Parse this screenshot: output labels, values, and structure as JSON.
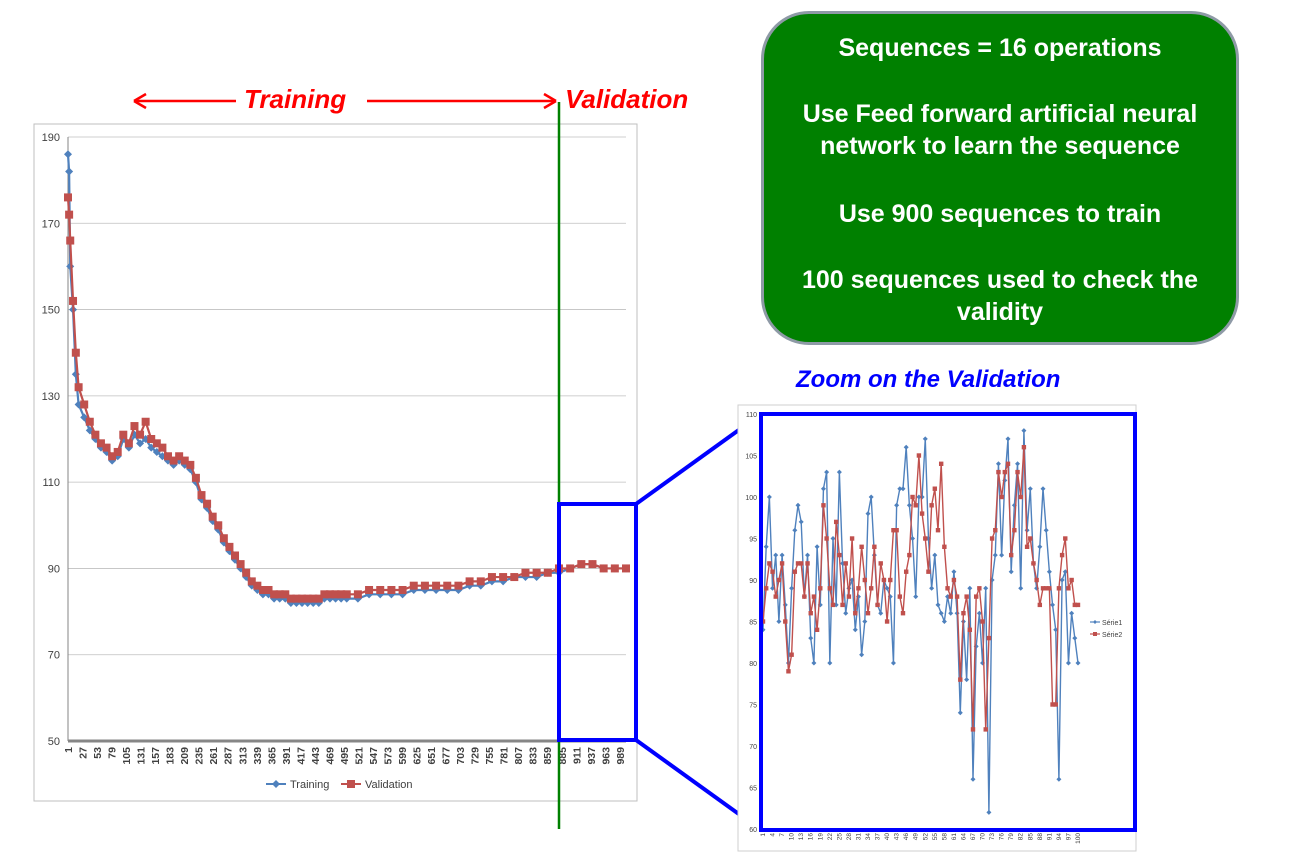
{
  "annotations": {
    "training_label": "Training",
    "validation_label": "Validation",
    "zoom_label": "Zoom on the Validation"
  },
  "info_box": {
    "line1": "Sequences = 16 operations",
    "line2": "Use Feed forward artificial neural network to learn the sequence",
    "line3": "Use 900 sequences to train",
    "line4": "100 sequences used to check the validity"
  },
  "colors": {
    "training": "#4f81bd",
    "validation": "#c0504d",
    "arrow": "#ff0000",
    "split_line": "#008000",
    "zoom_frame": "#0000ff",
    "box_fill": "#008000"
  },
  "chart_data": [
    {
      "type": "line",
      "title": "",
      "xlabel": "",
      "ylabel": "",
      "ylim": [
        50,
        190
      ],
      "yticks": [
        50,
        70,
        90,
        110,
        130,
        150,
        170,
        190
      ],
      "grid": true,
      "legend_position": "bottom",
      "x_tick_labels": [
        "1",
        "27",
        "53",
        "79",
        "105",
        "131",
        "157",
        "183",
        "209",
        "235",
        "261",
        "287",
        "313",
        "339",
        "365",
        "391",
        "417",
        "443",
        "469",
        "495",
        "521",
        "547",
        "573",
        "599",
        "625",
        "651",
        "677",
        "703",
        "729",
        "755",
        "781",
        "807",
        "833",
        "859",
        "885",
        "911",
        "937",
        "963",
        "989"
      ],
      "x_count": 1000,
      "train_validation_split": 900,
      "series": [
        {
          "name": "Training",
          "x": [
            1,
            3,
            5,
            10,
            15,
            20,
            30,
            40,
            50,
            60,
            70,
            80,
            90,
            100,
            110,
            120,
            130,
            140,
            150,
            160,
            170,
            180,
            190,
            200,
            210,
            220,
            230,
            240,
            250,
            260,
            270,
            280,
            290,
            300,
            310,
            320,
            330,
            340,
            350,
            360,
            370,
            380,
            390,
            400,
            410,
            420,
            430,
            440,
            450,
            460,
            470,
            480,
            490,
            500,
            520,
            540,
            560,
            580,
            600,
            620,
            640,
            660,
            680,
            700,
            720,
            740,
            760,
            780,
            800,
            820,
            840,
            860,
            880,
            900,
            920,
            940,
            960,
            980,
            1000
          ],
          "values": [
            186,
            182,
            160,
            150,
            135,
            128,
            125,
            122,
            120,
            118,
            117,
            115,
            116,
            120,
            118,
            121,
            119,
            120,
            118,
            117,
            116,
            115,
            114,
            115,
            114,
            113,
            110,
            106,
            104,
            101,
            99,
            96,
            94,
            92,
            90,
            88,
            86,
            85,
            84,
            84,
            83,
            83,
            83,
            82,
            82,
            82,
            82,
            82,
            82,
            83,
            83,
            83,
            83,
            83,
            83,
            84,
            84,
            84,
            84,
            85,
            85,
            85,
            85,
            85,
            86,
            86,
            87,
            87,
            88,
            88,
            88,
            89,
            89,
            90,
            91,
            91,
            90,
            90,
            90
          ]
        },
        {
          "name": "Validation",
          "x": [
            1,
            3,
            5,
            10,
            15,
            20,
            30,
            40,
            50,
            60,
            70,
            80,
            90,
            100,
            110,
            120,
            130,
            140,
            150,
            160,
            170,
            180,
            190,
            200,
            210,
            220,
            230,
            240,
            250,
            260,
            270,
            280,
            290,
            300,
            310,
            320,
            330,
            340,
            350,
            360,
            370,
            380,
            390,
            400,
            410,
            420,
            430,
            440,
            450,
            460,
            470,
            480,
            490,
            500,
            520,
            540,
            560,
            580,
            600,
            620,
            640,
            660,
            680,
            700,
            720,
            740,
            760,
            780,
            800,
            820,
            840,
            860,
            880,
            900,
            920,
            940,
            960,
            980,
            1000
          ],
          "values": [
            176,
            172,
            166,
            152,
            140,
            132,
            128,
            124,
            121,
            119,
            118,
            116,
            117,
            121,
            119,
            123,
            121,
            124,
            120,
            119,
            118,
            116,
            115,
            116,
            115,
            114,
            111,
            107,
            105,
            102,
            100,
            97,
            95,
            93,
            91,
            89,
            87,
            86,
            85,
            85,
            84,
            84,
            84,
            83,
            83,
            83,
            83,
            83,
            83,
            84,
            84,
            84,
            84,
            84,
            84,
            85,
            85,
            85,
            85,
            86,
            86,
            86,
            86,
            86,
            87,
            87,
            88,
            88,
            88,
            89,
            89,
            89,
            90,
            90,
            91,
            91,
            90,
            90,
            90
          ]
        }
      ]
    },
    {
      "type": "line",
      "title": "",
      "xlabel": "",
      "ylabel": "",
      "ylim": [
        60,
        110
      ],
      "yticks": [
        60,
        65,
        70,
        75,
        80,
        85,
        90,
        95,
        100,
        105,
        110
      ],
      "grid": false,
      "legend_position": "right",
      "x_tick_labels": [
        "1",
        "4",
        "7",
        "10",
        "13",
        "16",
        "19",
        "22",
        "25",
        "28",
        "31",
        "34",
        "37",
        "40",
        "43",
        "46",
        "49",
        "52",
        "55",
        "58",
        "61",
        "64",
        "67",
        "70",
        "73",
        "76",
        "79",
        "82",
        "85",
        "88",
        "91",
        "94",
        "97",
        "100"
      ],
      "series": [
        {
          "name": "Série1",
          "values": [
            84,
            94,
            100,
            89,
            93,
            85,
            93,
            87,
            80,
            89,
            96,
            99,
            97,
            88,
            93,
            83,
            80,
            94,
            87,
            101,
            103,
            80,
            95,
            87,
            103,
            92,
            86,
            89,
            90,
            84,
            88,
            81,
            85,
            98,
            100,
            93,
            87,
            86,
            90,
            89,
            88,
            80,
            99,
            101,
            101,
            106,
            99,
            95,
            88,
            100,
            100,
            107,
            95,
            89,
            93,
            87,
            86,
            85,
            88,
            86,
            91,
            86,
            74,
            85,
            78,
            89,
            66,
            82,
            86,
            80,
            89,
            62,
            90,
            93,
            104,
            93,
            102,
            107,
            91,
            99,
            104,
            89,
            108,
            96,
            101,
            92,
            89,
            94,
            101,
            96,
            91,
            87,
            84,
            66,
            90,
            91,
            80,
            86,
            83,
            80
          ]
        },
        {
          "name": "Série2",
          "values": [
            85,
            89,
            92,
            91,
            88,
            90,
            92,
            85,
            79,
            81,
            91,
            92,
            92,
            88,
            92,
            86,
            88,
            84,
            89,
            99,
            95,
            89,
            87,
            97,
            93,
            87,
            92,
            88,
            95,
            86,
            89,
            94,
            90,
            86,
            89,
            94,
            87,
            92,
            90,
            85,
            90,
            96,
            96,
            88,
            86,
            91,
            93,
            100,
            99,
            105,
            98,
            95,
            91,
            99,
            101,
            96,
            104,
            94,
            89,
            88,
            90,
            88,
            78,
            86,
            88,
            84,
            72,
            88,
            89,
            85,
            72,
            83,
            95,
            96,
            103,
            100,
            103,
            104,
            93,
            96,
            103,
            100,
            106,
            94,
            95,
            92,
            90,
            87,
            89,
            89,
            89,
            75,
            75,
            89,
            93,
            95,
            89,
            90,
            87,
            87
          ]
        }
      ]
    }
  ]
}
